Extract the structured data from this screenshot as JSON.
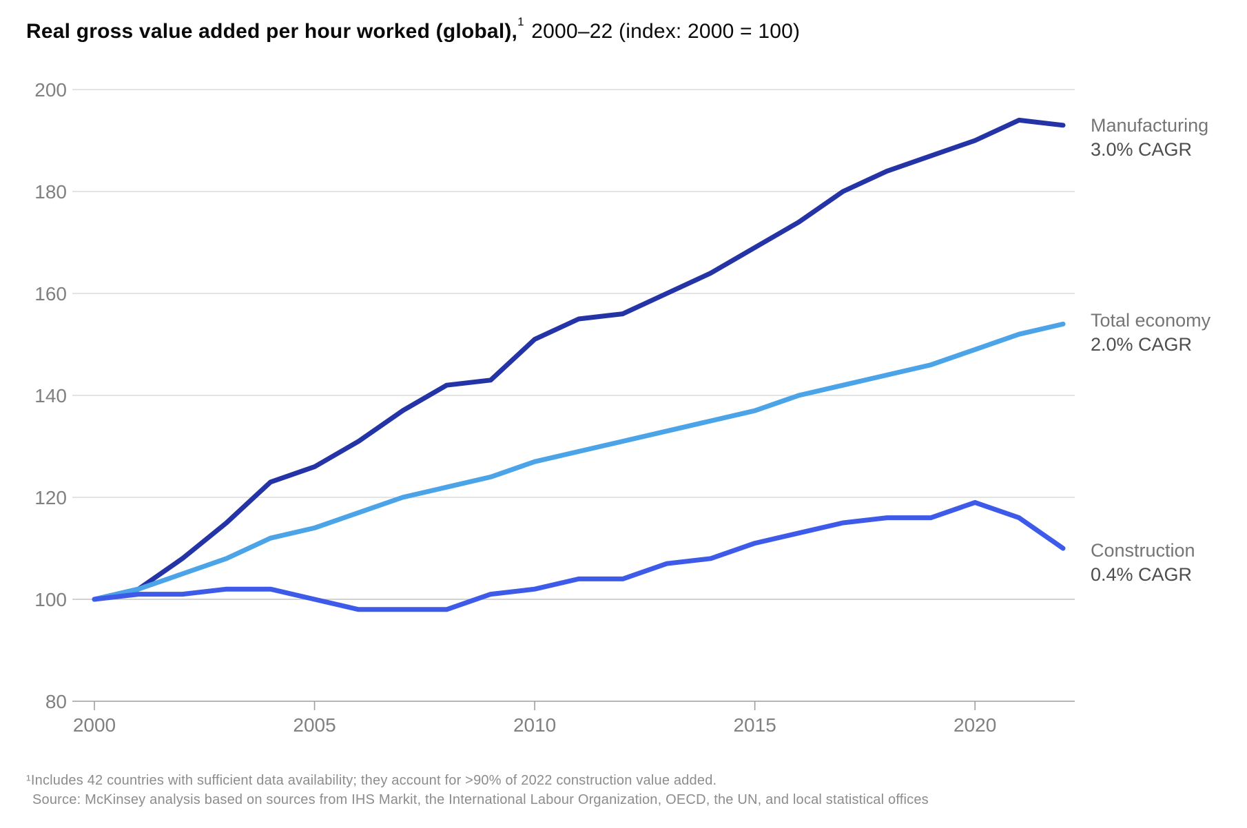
{
  "title": {
    "bold": "Real gross value added per hour worked (global),",
    "superscript": "1",
    "regular": "2000–22 (index: 2000 = 100)"
  },
  "legend": {
    "position": "right"
  },
  "footnotes": [
    "¹Includes 42 countries with sufficient data availability; they account for >90% of 2022 construction value added.",
    "Source: McKinsey analysis based on sources from IHS Markit, the International Labour Organization, OECD, the UN, and local statistical offices"
  ],
  "colors": {
    "manufacturing_line": "#2433a5",
    "total_economy_line": "#4ba3e8",
    "construction_line": "#3d5ae8",
    "gridline": "#dcdcdc",
    "gridline_100": "#c4c4c4",
    "axis_baseline": "#9e9e9e",
    "tick_label": "#808080",
    "title_text": "#0a0a0a",
    "footnote_text": "#8c8c8c"
  },
  "chart_data": {
    "type": "line",
    "x": [
      2000,
      2001,
      2002,
      2003,
      2004,
      2005,
      2006,
      2007,
      2008,
      2009,
      2010,
      2011,
      2012,
      2013,
      2014,
      2015,
      2016,
      2017,
      2018,
      2019,
      2020,
      2021,
      2022
    ],
    "series": [
      {
        "name": "Manufacturing",
        "cagr_label": "3.0% CAGR",
        "color": "#2433a5",
        "values": [
          100,
          102,
          108,
          115,
          123,
          126,
          131,
          137,
          142,
          143,
          151,
          155,
          156,
          160,
          164,
          169,
          174,
          180,
          184,
          187,
          190,
          194,
          193
        ]
      },
      {
        "name": "Total economy",
        "cagr_label": "2.0% CAGR",
        "color": "#4ba3e8",
        "values": [
          100,
          102,
          105,
          108,
          112,
          114,
          117,
          120,
          122,
          124,
          127,
          129,
          131,
          133,
          135,
          137,
          140,
          142,
          144,
          146,
          149,
          152,
          154
        ]
      },
      {
        "name": "Construction",
        "cagr_label": "0.4% CAGR",
        "color": "#3d5ae8",
        "values": [
          100,
          101,
          101,
          102,
          102,
          100,
          98,
          98,
          98,
          101,
          102,
          104,
          104,
          107,
          108,
          111,
          113,
          115,
          116,
          116,
          119,
          116,
          110
        ]
      }
    ],
    "xticks": [
      2000,
      2005,
      2010,
      2015,
      2020
    ],
    "yticks": [
      80,
      100,
      120,
      140,
      160,
      180,
      200
    ],
    "xlim": [
      2000,
      2022
    ],
    "ylim": [
      80,
      200
    ],
    "grid": true,
    "legend_position": "right",
    "title": "Real gross value added per hour worked (global), 2000–22 (index: 2000 = 100)"
  }
}
